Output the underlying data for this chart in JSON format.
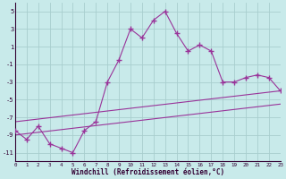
{
  "xlabel": "Windchill (Refroidissement éolien,°C)",
  "hours": [
    0,
    1,
    2,
    3,
    4,
    5,
    6,
    7,
    8,
    9,
    10,
    11,
    12,
    13,
    14,
    15,
    16,
    17,
    18,
    19,
    20,
    21,
    22,
    23
  ],
  "windchill": [
    -8.5,
    -9.5,
    -8.0,
    -10.0,
    -10.5,
    -11.0,
    -8.5,
    -7.5,
    -3.0,
    -0.5,
    3.0,
    2.0,
    4.0,
    5.0,
    2.5,
    0.5,
    1.2,
    0.5,
    -3.0,
    -3.0,
    -2.5,
    -2.2,
    -2.5,
    -4.0
  ],
  "upper_trend_x": [
    0,
    23
  ],
  "upper_trend_y": [
    -7.5,
    -4.0
  ],
  "lower_trend_x": [
    0,
    23
  ],
  "lower_trend_y": [
    -9.0,
    -5.5
  ],
  "ylim": [
    -12,
    6
  ],
  "yticks": [
    -11,
    -9,
    -7,
    -5,
    -3,
    -1,
    1,
    3,
    5
  ],
  "xlim": [
    0,
    23
  ],
  "bg_color": "#c8eaea",
  "grid_color": "#a8cece",
  "line_color": "#993399",
  "marker": "+",
  "marker_size": 5,
  "line_width": 0.8
}
